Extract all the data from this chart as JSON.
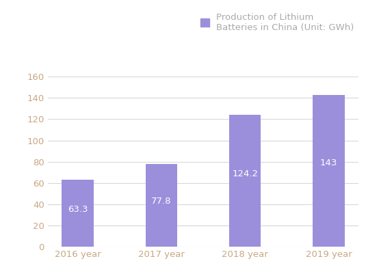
{
  "categories": [
    "2016 year",
    "2017 year",
    "2018 year",
    "2019 year"
  ],
  "values": [
    63.3,
    77.8,
    124.2,
    143
  ],
  "bar_color": "#9b8fdc",
  "bar_labels": [
    "63.3",
    "77.8",
    "124.2",
    "143"
  ],
  "legend_label": "Production of Lithium\nBatteries in China (Unit: GWh)",
  "ylim": [
    0,
    160
  ],
  "yticks": [
    0,
    20,
    40,
    60,
    80,
    100,
    120,
    140,
    160
  ],
  "grid_color": "#d8d8d8",
  "background_color": "#ffffff",
  "label_color": "#ffffff",
  "tick_label_color": "#c8a882",
  "bar_width": 0.38,
  "label_fontsize": 9.5,
  "tick_fontsize": 9.5,
  "legend_fontsize": 9.5,
  "legend_color": "#aaaaaa"
}
